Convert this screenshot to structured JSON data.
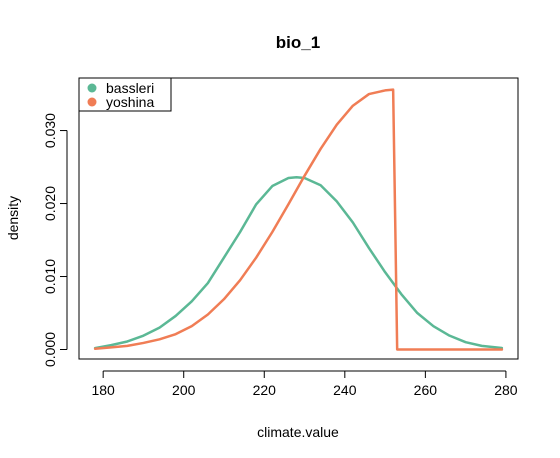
{
  "chart_data": {
    "type": "line",
    "title": "bio_1",
    "xlabel": "climate.value",
    "ylabel": "density",
    "xlim": [
      174,
      283
    ],
    "ylim": [
      -0.0013,
      0.0372
    ],
    "xticks": [
      180,
      200,
      220,
      240,
      260,
      280
    ],
    "yticks": [
      0.0,
      0.01,
      0.02,
      0.03
    ],
    "xtick_labels": [
      "180",
      "200",
      "220",
      "240",
      "260",
      "280"
    ],
    "ytick_labels": [
      "0.000",
      "0.010",
      "0.020",
      "0.030"
    ],
    "grid": false,
    "legend_position": "top-left",
    "series": [
      {
        "name": "bassleri",
        "color": "#5BB895",
        "x": [
          178,
          182,
          186,
          190,
          194,
          198,
          202,
          206,
          210,
          214,
          218,
          222,
          226,
          228,
          230,
          234,
          238,
          242,
          246,
          250,
          254,
          258,
          262,
          266,
          270,
          274,
          279
        ],
        "y": [
          0.0002,
          0.0006,
          0.0011,
          0.0019,
          0.003,
          0.0046,
          0.0066,
          0.0091,
          0.0126,
          0.0161,
          0.0199,
          0.0224,
          0.0235,
          0.0236,
          0.0235,
          0.0225,
          0.0203,
          0.0174,
          0.0139,
          0.0106,
          0.0076,
          0.005,
          0.0032,
          0.0019,
          0.001,
          0.0005,
          0.0002
        ]
      },
      {
        "name": "yoshina",
        "color": "#F07D55",
        "x": [
          178,
          182,
          186,
          190,
          194,
          198,
          202,
          206,
          210,
          214,
          218,
          222,
          226,
          230,
          234,
          238,
          242,
          246,
          250,
          252,
          252.5,
          253,
          256,
          260,
          265,
          270,
          275,
          279
        ],
        "y": [
          0.0001,
          0.0003,
          0.0005,
          0.0009,
          0.0014,
          0.0021,
          0.0032,
          0.0048,
          0.0069,
          0.0095,
          0.0126,
          0.0161,
          0.0199,
          0.0238,
          0.0275,
          0.0308,
          0.0334,
          0.035,
          0.0355,
          0.0356,
          0.018,
          0.0,
          0.0,
          0.0,
          0.0,
          0.0,
          0.0,
          0.0
        ]
      }
    ]
  }
}
